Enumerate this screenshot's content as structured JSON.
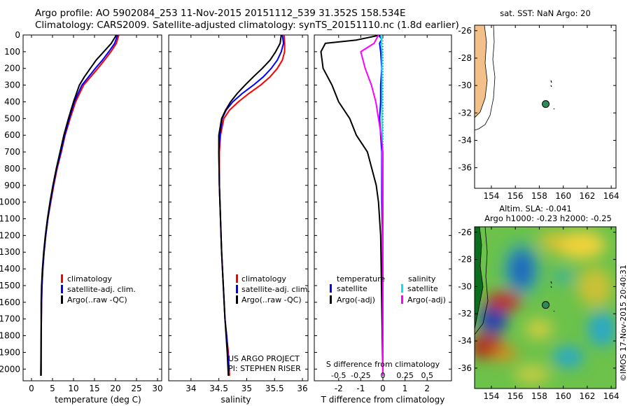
{
  "header": {
    "line1": "Argo profile: AO 5902084_253 11-Nov-2015 20151112_539 31.352S 158.534E",
    "line2": "Climatology: CARS2009. Satellite-adjusted climatology: synTS_20151110.nc (1.8d earlier)"
  },
  "colors": {
    "climatology": "#ff0000",
    "satellite": "#0000ff",
    "argo": "#000000",
    "satellite_s": "#00e5ee",
    "argo_s": "#ff00ff",
    "land": "#f4c08a"
  },
  "chart_data": [
    {
      "type": "line",
      "xlabel": "temperature (deg C)",
      "ylabel": "",
      "xlim": [
        -2,
        31
      ],
      "ylim": [
        2070,
        0
      ],
      "xticks": [
        0,
        5,
        10,
        15,
        20,
        25,
        30
      ],
      "yticks": [
        0,
        100,
        200,
        300,
        400,
        500,
        600,
        700,
        800,
        900,
        1000,
        1100,
        1200,
        1300,
        1400,
        1500,
        1600,
        1700,
        1800,
        1900,
        2000
      ],
      "legend": [
        "climatology",
        "satellite-adj. clim.",
        "Argo(..raw -QC)"
      ],
      "legend_position": "lower-right",
      "series": [
        {
          "name": "climatology",
          "x": [
            20.8,
            20.2,
            18.9,
            17.4,
            15.8,
            14.1,
            12.4,
            10.5,
            9.2,
            8.0,
            7.1,
            6.1,
            5.3,
            4.6,
            3.9,
            3.4,
            3.0,
            2.7,
            2.5,
            2.4,
            2.3,
            2.3
          ],
          "y": [
            0,
            50,
            100,
            150,
            200,
            250,
            300,
            400,
            500,
            600,
            700,
            800,
            900,
            1000,
            1100,
            1200,
            1300,
            1400,
            1500,
            1600,
            1800,
            2040
          ]
        },
        {
          "name": "satellite-adj. clim.",
          "x": [
            20.5,
            19.8,
            18.4,
            16.9,
            15.2,
            13.6,
            12.0,
            10.2,
            9.0,
            7.9,
            7.0,
            6.0,
            5.2,
            4.5,
            3.9,
            3.4,
            3.0,
            2.7,
            2.5,
            2.4,
            2.3,
            2.3
          ],
          "y": [
            0,
            50,
            100,
            150,
            200,
            250,
            300,
            400,
            500,
            600,
            700,
            800,
            900,
            1000,
            1100,
            1200,
            1300,
            1400,
            1500,
            1600,
            1800,
            2040
          ]
        },
        {
          "name": "Argo(..raw -QC)",
          "x": [
            20.2,
            19.0,
            17.2,
            15.4,
            14.0,
            12.6,
            11.4,
            10.0,
            8.8,
            7.7,
            6.8,
            5.9,
            5.1,
            4.4,
            3.8,
            3.3,
            2.9,
            2.6,
            2.4,
            2.3,
            2.3,
            2.2
          ],
          "y": [
            0,
            50,
            100,
            150,
            200,
            250,
            300,
            400,
            500,
            600,
            700,
            800,
            900,
            1000,
            1100,
            1200,
            1300,
            1400,
            1500,
            1600,
            1800,
            2040
          ]
        }
      ]
    },
    {
      "type": "line",
      "xlabel": "salinity",
      "xlim": [
        33.6,
        36.1
      ],
      "ylim": [
        2070,
        0
      ],
      "xticks": [
        34,
        34.5,
        35,
        35.5,
        36
      ],
      "legend": [
        "climatology",
        "satellite-adj. clim.",
        "Argo(..raw -QC)"
      ],
      "legend_position": "lower-right",
      "annotations": [
        "US ARGO PROJECT",
        "PI: STEPHEN RISER"
      ],
      "series": [
        {
          "name": "climatology",
          "x": [
            35.67,
            35.68,
            35.68,
            35.64,
            35.55,
            35.42,
            35.25,
            35.04,
            34.85,
            34.69,
            34.59,
            34.53,
            34.51,
            34.51,
            34.53,
            34.55,
            34.58,
            34.61,
            34.64,
            34.67,
            34.69
          ],
          "y": [
            0,
            50,
            100,
            150,
            200,
            250,
            300,
            350,
            400,
            450,
            500,
            600,
            700,
            900,
            1100,
            1300,
            1500,
            1700,
            1800,
            1900,
            2040
          ]
        },
        {
          "name": "satellite-adj. clim.",
          "x": [
            35.64,
            35.66,
            35.62,
            35.55,
            35.44,
            35.3,
            35.12,
            34.92,
            34.75,
            34.63,
            34.56,
            34.52,
            34.5,
            34.51,
            34.53,
            34.55,
            34.58,
            34.61,
            34.64,
            34.66,
            34.68
          ],
          "y": [
            0,
            50,
            100,
            150,
            200,
            250,
            300,
            350,
            400,
            450,
            500,
            600,
            700,
            900,
            1100,
            1300,
            1500,
            1700,
            1800,
            1900,
            2040
          ]
        },
        {
          "name": "Argo(..raw -QC)",
          "x": [
            35.62,
            35.6,
            35.52,
            35.42,
            35.28,
            35.12,
            34.97,
            34.83,
            34.71,
            34.62,
            34.55,
            34.5,
            34.5,
            34.51,
            34.53,
            34.55,
            34.58,
            34.61,
            34.63,
            34.65,
            34.67
          ],
          "y": [
            0,
            50,
            100,
            150,
            200,
            250,
            300,
            350,
            400,
            450,
            500,
            600,
            700,
            900,
            1100,
            1300,
            1500,
            1700,
            1800,
            1900,
            2040
          ]
        }
      ]
    },
    {
      "type": "line",
      "xlabel": "T difference from climatology",
      "top_axis_label": "S difference from climatology",
      "xlim": [
        -3.1,
        3.1
      ],
      "ylim": [
        2070,
        0
      ],
      "xticks_bottom": [
        "-2",
        "-1",
        "0",
        "1",
        "2"
      ],
      "xticks_top": [
        "-0.5",
        "-0.25",
        "0",
        "0.25",
        "0.5"
      ],
      "legend_titles": [
        "temperature",
        "salinity"
      ],
      "legend": [
        "satellite",
        "Argo(-adj)",
        "satellite",
        "Argo(-adj)"
      ],
      "series": [
        {
          "name": "temperature satellite",
          "x": [
            -0.2,
            -0.05,
            -0.15,
            -0.1,
            -0.05,
            -0.1,
            -0.1,
            -0.15,
            -0.1,
            -0.05,
            -0.05,
            -0.05,
            -0.05,
            -0.02,
            -0.02,
            0,
            0
          ],
          "y": [
            0,
            25,
            50,
            100,
            200,
            300,
            400,
            500,
            600,
            700,
            800,
            900,
            1000,
            1200,
            1400,
            1700,
            2040
          ]
        },
        {
          "name": "temperature Argo(-adj)",
          "x": [
            -0.1,
            -1.2,
            -2.6,
            -2.8,
            -2.7,
            -2.3,
            -2.0,
            -1.5,
            -1.2,
            -0.7,
            -0.5,
            -0.3,
            -0.2,
            -0.1,
            0
          ],
          "y": [
            0,
            30,
            50,
            100,
            200,
            300,
            400,
            500,
            600,
            700,
            800,
            900,
            1000,
            1200,
            2040
          ]
        },
        {
          "name": "salinity satellite",
          "x": [
            -0.02,
            -0.01,
            -0.01,
            -0.01,
            -0.005,
            0,
            0
          ],
          "y": [
            0,
            100,
            300,
            500,
            800,
            1200,
            2040
          ]
        },
        {
          "name": "salinity Argo(-adj)",
          "x": [
            -0.05,
            -0.1,
            -0.25,
            -0.2,
            -0.13,
            -0.08,
            -0.05,
            -0.02,
            0,
            0
          ],
          "y": [
            0,
            50,
            100,
            200,
            300,
            400,
            500,
            600,
            700,
            2040
          ]
        }
      ]
    }
  ],
  "maps": {
    "sst": {
      "title": "sat. SST: NaN  Argo: 20",
      "lon_ticks": [
        "154",
        "156",
        "158",
        "160",
        "162",
        "164"
      ],
      "lat_ticks": [
        "-26",
        "-28",
        "-30",
        "-32",
        "-34",
        "-36"
      ],
      "argo_position": {
        "lon": 158.534,
        "lat": -31.352
      }
    },
    "sla": {
      "title_line1": "Altim. SLA: -0.041",
      "title_line2": "Argo h1000: -0.23  h2000: -0.25",
      "lon_ticks": [
        "154",
        "156",
        "158",
        "160",
        "162",
        "164"
      ],
      "lat_ticks": [
        "-26",
        "-28",
        "-30",
        "-32",
        "-34",
        "-36"
      ],
      "argo_position": {
        "lon": 158.534,
        "lat": -31.352
      }
    }
  },
  "credit": "©IMOS 17-Nov-2015 20:40:31"
}
